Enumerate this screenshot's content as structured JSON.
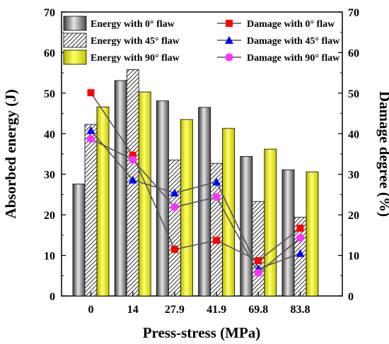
{
  "chart_data": {
    "type": "bar",
    "title": "",
    "xlabel": "Press-stress (MPa)",
    "ylabel": "Absorbed energy (J)",
    "y2label": "Damage degree (%)",
    "categories": [
      "0",
      "14",
      "27.9",
      "41.9",
      "69.8",
      "83.8"
    ],
    "ylim": [
      0,
      70
    ],
    "y2lim": [
      0,
      70
    ],
    "yticks": [
      "0",
      "10",
      "20",
      "30",
      "40",
      "50",
      "60",
      "70"
    ],
    "y2ticks": [
      "0",
      "10",
      "20",
      "30",
      "40",
      "50",
      "60",
      "70"
    ],
    "legend_placement": "top",
    "bar_series": [
      {
        "name": "Energy with 0° flaw",
        "values": [
          27.6,
          53.1,
          48.1,
          46.5,
          34.4,
          31.1
        ],
        "pattern": "gradient-gray"
      },
      {
        "name": "Energy with 45° flaw",
        "values": [
          42.3,
          55.8,
          33.5,
          32.7,
          23.3,
          19.4
        ],
        "pattern": "hatch"
      },
      {
        "name": "Energy with 90° flaw",
        "values": [
          46.6,
          50.3,
          43.5,
          41.3,
          36.2,
          30.6
        ],
        "pattern": "gradient-yellow"
      }
    ],
    "line_series": [
      {
        "name": "Damage with 0° flaw",
        "values": [
          50.1,
          34.7,
          11.5,
          13.7,
          8.7,
          16.7
        ],
        "color": "#ff0000",
        "marker": "square"
      },
      {
        "name": "Damage with 45° flaw",
        "values": [
          40.8,
          28.6,
          25.4,
          28.1,
          6.7,
          10.5
        ],
        "color": "#0000ff",
        "marker": "triangle"
      },
      {
        "name": "Damage with 90° flaw",
        "values": [
          38.7,
          33.6,
          21.9,
          24.4,
          5.7,
          14.3
        ],
        "color": "#ff33ff",
        "marker": "circle"
      }
    ]
  }
}
